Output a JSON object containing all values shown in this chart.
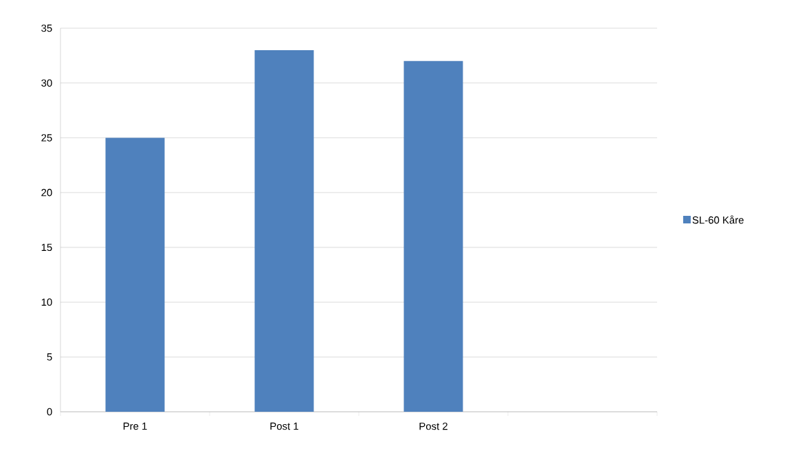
{
  "chart_data": {
    "type": "bar",
    "categories": [
      "Pre 1",
      "Post 1",
      "Post 2",
      null
    ],
    "series": [
      {
        "name": "SL-60 Kåre",
        "color": "#4f81bd",
        "values": [
          25,
          33,
          32,
          null
        ]
      }
    ],
    "ylim": [
      0,
      35
    ],
    "yticks": [
      0,
      5,
      10,
      15,
      20,
      25,
      30,
      35
    ],
    "grid": "y",
    "legend": "right"
  }
}
